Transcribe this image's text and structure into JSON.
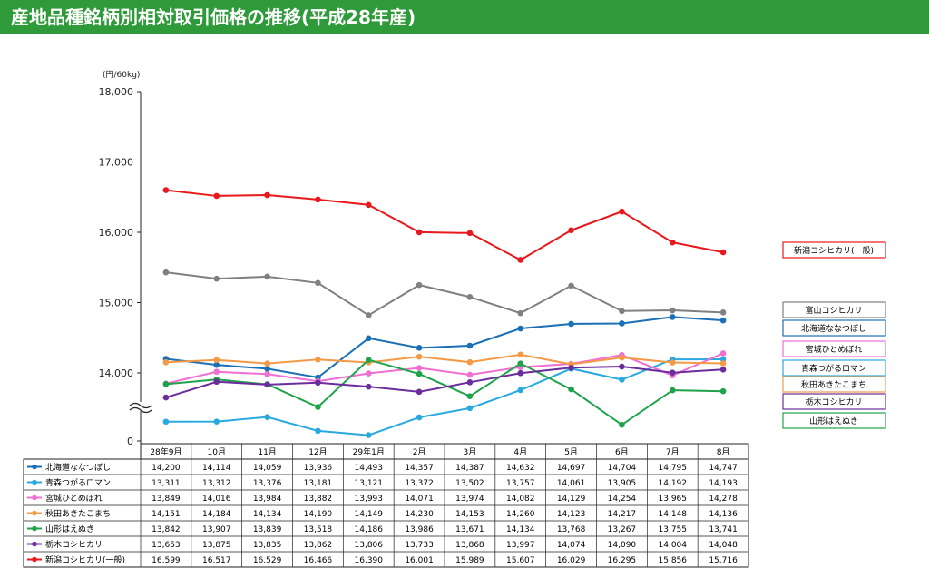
{
  "title": "産地品種銘柄別相対取引価格の推移(平成28年産)",
  "chart_data": {
    "type": "line",
    "unit_label": "(円/60kg)",
    "y_ticks": [
      "18,000",
      "17,000",
      "16,000",
      "15,000",
      "14,000",
      "0"
    ],
    "ylim_upper": [
      14000,
      18000
    ],
    "ylim_lower": [
      13000,
      14000
    ],
    "categories": [
      "28年9月",
      "10月",
      "11月",
      "12月",
      "29年1月",
      "2月",
      "3月",
      "4月",
      "5月",
      "6月",
      "7月",
      "8月"
    ],
    "series": [
      {
        "name": "北海道ななつぼし",
        "color": "#1a6fb5",
        "display": "14,200,14,114,14,059,13,936,14,493,14,357,14,387,14,632,14,697,14,704,14,795,14,747",
        "values": [
          14200,
          14114,
          14059,
          13936,
          14493,
          14357,
          14387,
          14632,
          14697,
          14704,
          14795,
          14747
        ]
      },
      {
        "name": "青森つがるロマン",
        "color": "#2aa9e0",
        "display": "13,311,13,312,13,376,13,181,13,121,13,372,13,502,13,757,14,061,13,905,14,192,14,193",
        "values": [
          13311,
          13312,
          13376,
          13181,
          13121,
          13372,
          13502,
          13757,
          14061,
          13905,
          14192,
          14193
        ]
      },
      {
        "name": "宮城ひとめぼれ",
        "color": "#f06fd3",
        "display": "13,849,14,016,13,984,13,882,13,993,14,071,13,974,14,082,14,129,14,254,13,965,14,278",
        "values": [
          13849,
          14016,
          13984,
          13882,
          13993,
          14071,
          13974,
          14082,
          14129,
          14254,
          13965,
          14278
        ]
      },
      {
        "name": "秋田あきたこまち",
        "color": "#f39a46",
        "display": "14,151,14,184,14,134,14,190,14,149,14,230,14,153,14,260,14,123,14,217,14,148,14,136",
        "values": [
          14151,
          14184,
          14134,
          14190,
          14149,
          14230,
          14153,
          14260,
          14123,
          14217,
          14148,
          14136
        ]
      },
      {
        "name": "山形はえぬき",
        "color": "#1fa34a",
        "display": "13,842,13,907,13,839,13,518,14,186,13,986,13,671,14,134,13,768,13,267,13,755,13,741",
        "values": [
          13842,
          13907,
          13839,
          13518,
          14186,
          13986,
          13671,
          14134,
          13768,
          13267,
          13755,
          13741
        ]
      },
      {
        "name": "栃木コシヒカリ",
        "color": "#6b2d9c",
        "display": "13,653,13,875,13,835,13,862,13,806,13,733,13,868,13,997,14,074,14,090,14,004,14,048",
        "values": [
          13653,
          13875,
          13835,
          13862,
          13806,
          13733,
          13868,
          13997,
          14074,
          14090,
          14004,
          14048
        ]
      },
      {
        "name": "新潟コシヒカリ(一般)",
        "color": "#e8181c",
        "display": "16,599,16,517,16,529,16,466,16,390,16,001,15,989,15,607,16,029,16,295,15,856,15,716",
        "values": [
          16599,
          16517,
          16529,
          16466,
          16390,
          16001,
          15989,
          15607,
          16029,
          16295,
          15856,
          15716
        ]
      }
    ],
    "extra_line": {
      "name": "富山コシヒカリ",
      "color": "#808080",
      "values": [
        15430,
        15340,
        15370,
        15280,
        14820,
        15250,
        15080,
        14850,
        15240,
        14880,
        14890,
        14860
      ]
    },
    "legend_boxes": [
      "新潟コシヒカリ(一般)",
      "富山コシヒカリ",
      "北海道ななつぼし",
      "宮城ひとめぼれ",
      "青森つがるロマン",
      "秋田あきたこまち",
      "栃木コシヒカリ",
      "山形はえぬき"
    ],
    "box_colors": [
      "#e8181c",
      "#808080",
      "#1a6fb5",
      "#f06fd3",
      "#2aa9e0",
      "#f39a46",
      "#6b2d9c",
      "#1fa34a"
    ]
  }
}
